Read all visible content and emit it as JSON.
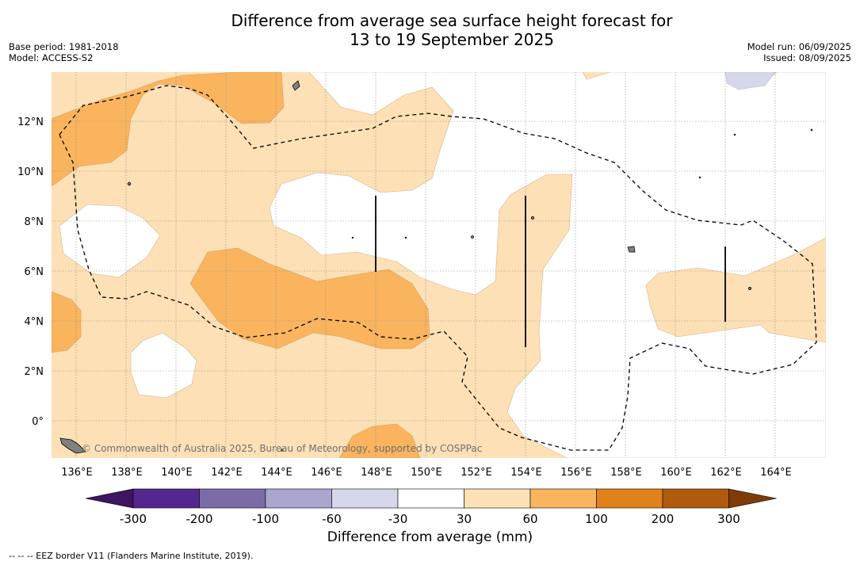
{
  "header": {
    "title_line1": "Difference from average sea surface height forecast for",
    "title_line2": "13 to 19 September 2025",
    "base_period": "Base period: 1981-2018",
    "model": "Model: ACCESS-S2",
    "model_run": "Model run: 06/09/2025",
    "issued": "Issued: 08/09/2025"
  },
  "map": {
    "lon_labels": [
      "136°E",
      "138°E",
      "140°E",
      "142°E",
      "144°E",
      "146°E",
      "148°E",
      "150°E",
      "152°E",
      "154°E",
      "156°E",
      "158°E",
      "160°E",
      "162°E",
      "164°E"
    ],
    "lat_labels": [
      "12°N",
      "10°N",
      "8°N",
      "6°N",
      "4°N",
      "2°N",
      "0°"
    ],
    "watermark": "© Commonwealth of Australia 2025, Bureau of Meteorology, supported by COSPPac"
  },
  "colorbar": {
    "ticks": [
      "-300",
      "-200",
      "-100",
      "-60",
      "-30",
      "30",
      "60",
      "100",
      "200",
      "300"
    ],
    "colors": [
      "#3d1560",
      "#54278f",
      "#7b6ca8",
      "#aba6d0",
      "#d6d7ea",
      "#ffffff",
      "#fde0b6",
      "#f9b45d",
      "#e0811a",
      "#b05a0e",
      "#7f3b08"
    ],
    "label": "Difference from average (mm)"
  },
  "footer": {
    "eez_note": "--  --  -- EEZ border V11 (Flanders Marine Institute, 2019)."
  }
}
